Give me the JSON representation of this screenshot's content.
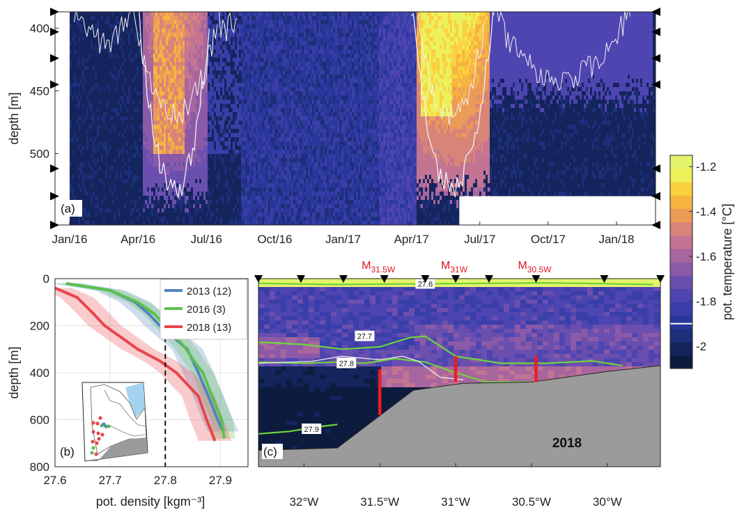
{
  "colors": {
    "colormap": [
      "#0d1b3e",
      "#14245c",
      "#1d2f7a",
      "#29379a",
      "#3a3ea8",
      "#4e45b0",
      "#6a4fae",
      "#8a5aa8",
      "#a8669e",
      "#c27492",
      "#d88478",
      "#ec9a58",
      "#f6b441",
      "#fbd13f",
      "#eef05a",
      "#e4f46a"
    ],
    "series_2013": "#4f86c0",
    "series_2016": "#5cc04e",
    "series_2018": "#e8454a",
    "isopycnal": "#6ed43c",
    "mooring": "#ee1c25",
    "bathymetry": "#9b9b9b"
  },
  "chart_data": [
    {
      "id": "a",
      "type": "heatmap",
      "panel_label": "(a)",
      "ylabel": "depth [m]",
      "xticks": [
        "Jan/16",
        "Apr/16",
        "Jul/16",
        "Oct/16",
        "Jan/17",
        "Apr/17",
        "Jul/17",
        "Oct/17",
        "Jan/18"
      ],
      "yticks": [
        "400",
        "450",
        "500"
      ],
      "ylim": [
        387,
        557
      ],
      "sensor_depths": [
        387,
        403,
        424,
        445,
        512,
        534,
        557
      ],
      "warm_events": [
        {
          "start": "Apr/16",
          "end": "Jul/16",
          "max_depth": 533,
          "peak": -1.4
        },
        {
          "start": "Apr/17",
          "end": "Jul/17",
          "max_depth": 530,
          "peak": -1.2
        },
        {
          "start": "Jul/17",
          "end": "Jan/18",
          "max_depth": 450,
          "peak": -1.75
        }
      ]
    },
    {
      "id": "b",
      "type": "line",
      "panel_label": "(b)",
      "xlabel": "pot. density [kgm⁻³]",
      "ylabel": "depth [m]",
      "xlim": [
        27.6,
        27.95
      ],
      "ylim": [
        0,
        800
      ],
      "xticks": [
        "27.6",
        "27.7",
        "27.8",
        "27.9"
      ],
      "yticks": [
        "0",
        "200",
        "400",
        "600",
        "800"
      ],
      "reference_line": 27.8,
      "series": [
        {
          "name": "2013 (12)",
          "color_key": "series_2013",
          "x": [
            27.62,
            27.7,
            27.745,
            27.77,
            27.79,
            27.815,
            27.84,
            27.86,
            27.878,
            27.895,
            27.905
          ],
          "y": [
            20,
            50,
            100,
            150,
            200,
            250,
            300,
            400,
            500,
            600,
            650
          ]
        },
        {
          "name": "2016 (3)",
          "color_key": "series_2016",
          "x": [
            27.62,
            27.7,
            27.75,
            27.78,
            27.8,
            27.82,
            27.838,
            27.852,
            27.868,
            27.885,
            27.902,
            27.907
          ],
          "y": [
            20,
            50,
            100,
            150,
            200,
            250,
            300,
            350,
            400,
            500,
            600,
            680
          ]
        },
        {
          "name": "2018 (13)",
          "color_key": "series_2018",
          "x": [
            27.6,
            27.64,
            27.67,
            27.69,
            27.72,
            27.75,
            27.79,
            27.82,
            27.84,
            27.86,
            27.875,
            27.89
          ],
          "y": [
            40,
            80,
            150,
            200,
            250,
            300,
            350,
            400,
            450,
            500,
            600,
            690
          ]
        }
      ]
    },
    {
      "id": "c",
      "type": "heatmap",
      "panel_label": "(c)",
      "year_label": "2018",
      "xticks": [
        "32°W",
        "31.5°W",
        "31°W",
        "30.5°W",
        "30°W"
      ],
      "xlim": [
        32.3,
        29.65
      ],
      "ylim": [
        0,
        800
      ],
      "isopycnals": [
        {
          "label": "27.6",
          "lon": [
            32.3,
            31.8,
            31.2,
            30.8,
            30.4,
            30.0,
            29.7
          ],
          "depth": [
            20,
            25,
            22,
            20,
            18,
            22,
            25
          ]
        },
        {
          "label": "27.7",
          "lon": [
            32.3,
            32.0,
            31.75,
            31.5,
            31.3,
            31.2,
            31.0,
            30.7,
            30.4,
            30.1,
            29.9
          ],
          "depth": [
            270,
            280,
            300,
            290,
            250,
            245,
            330,
            360,
            360,
            350,
            370
          ]
        },
        {
          "label": "27.8",
          "lon": [
            32.3,
            32.0,
            31.8,
            31.6,
            31.4,
            31.2,
            31.0,
            30.8,
            30.5
          ],
          "depth": [
            355,
            360,
            355,
            360,
            340,
            355,
            400,
            440,
            440
          ]
        },
        {
          "label": "27.9",
          "lon": [
            32.3,
            32.1,
            31.9,
            31.78
          ],
          "depth": [
            660,
            650,
            630,
            620
          ]
        }
      ],
      "bathymetry": {
        "lon": [
          32.3,
          31.78,
          31.28,
          30.95,
          30.5,
          30.0,
          29.65
        ],
        "depth": [
          730,
          720,
          475,
          445,
          440,
          395,
          370
        ]
      },
      "moorings": [
        {
          "label": "M",
          "sub": "31.5W",
          "lon": 31.5,
          "top": 385,
          "bottom": 580
        },
        {
          "label": "M",
          "sub": "31W",
          "lon": 31.0,
          "top": 330,
          "bottom": 440
        },
        {
          "label": "M",
          "sub": "30.5W",
          "lon": 30.47,
          "top": 330,
          "bottom": 440
        }
      ],
      "station_lons": [
        32.3,
        32.02,
        31.74,
        31.47,
        31.2,
        31.0,
        30.78,
        30.47,
        30.02,
        29.65
      ]
    }
  ],
  "colorbar": {
    "label": "pot. temperature [°C]",
    "ticks": [
      "-1.2",
      "-1.4",
      "-1.6",
      "-1.8",
      "-2"
    ],
    "min": -2.1,
    "max": -1.15,
    "marker": -1.9
  }
}
